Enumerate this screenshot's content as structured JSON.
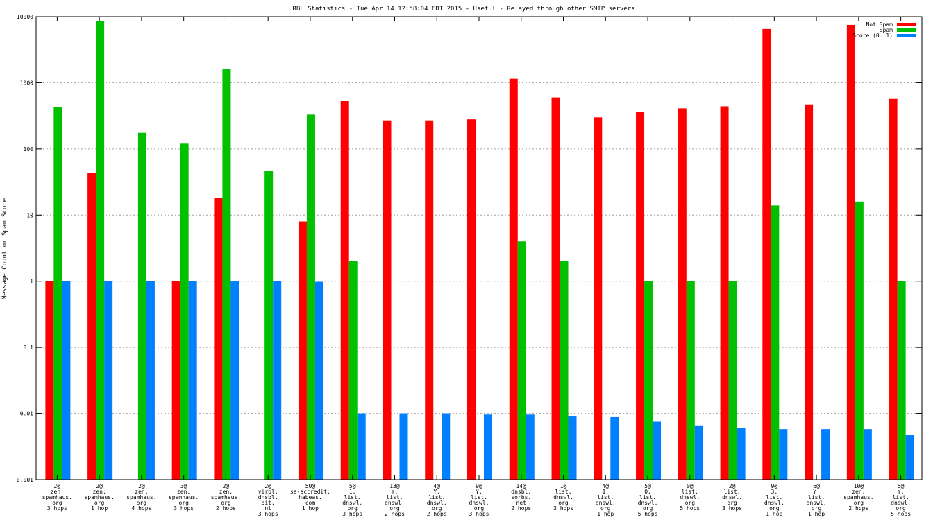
{
  "chart_data": {
    "type": "bar",
    "title": "RBL Statistics - Tue Apr 14 12:58:04 EDT 2015 - Useful - Relayed through other SMTP servers",
    "xlabel": "",
    "ylabel": "Message Count or Spam Score",
    "yscale": "log",
    "ylim": [
      0.001,
      10000
    ],
    "yticks": [
      "0.001",
      "0.01",
      "0.1",
      "1",
      "10",
      "100",
      "1000",
      "10000"
    ],
    "grid": true,
    "legend_position": "top-right",
    "categories": [
      [
        "2@",
        "zen.",
        "spamhaus.",
        "org",
        "3 hops"
      ],
      [
        "2@",
        "zen.",
        "spamhaus.",
        "org",
        "1 hop"
      ],
      [
        "2@",
        "zen.",
        "spamhaus.",
        "org",
        "4 hops"
      ],
      [
        "3@",
        "zen.",
        "spamhaus.",
        "org",
        "3 hops"
      ],
      [
        "2@",
        "zen.",
        "spamhaus.",
        "org",
        "2 hops"
      ],
      [
        "2@",
        "virbl.",
        "dnsbl.",
        "bit.",
        "nl",
        "3 hops"
      ],
      [
        "50@",
        "sa-accredit.",
        "habeas.",
        "com",
        "1 hop"
      ],
      [
        "5@",
        "1.",
        "list.",
        "dnswl.",
        "org",
        "3 hops"
      ],
      [
        "13@",
        "Y.",
        "list.",
        "dnswl.",
        "org",
        "2 hops"
      ],
      [
        "4@",
        "Y.",
        "list.",
        "dnswl.",
        "org",
        "2 hops"
      ],
      [
        "9@",
        "Y.",
        "list.",
        "dnswl.",
        "org",
        "3 hops"
      ],
      [
        "14@",
        "dnsbl.",
        "sorbs.",
        "net",
        "2 hops"
      ],
      [
        "1@",
        "list.",
        "dnswl.",
        "org",
        "3 hops"
      ],
      [
        "4@",
        "1.",
        "list.",
        "dnswl.",
        "org",
        "1 hop"
      ],
      [
        "5@",
        "0.",
        "list.",
        "dnswl.",
        "org",
        "5 hops"
      ],
      [
        "0@",
        "list.",
        "dnswl.",
        "org",
        "5 hops"
      ],
      [
        "2@",
        "list.",
        "dnswl.",
        "org",
        "3 hops"
      ],
      [
        "9@",
        "3.",
        "list.",
        "dnswl.",
        "org",
        "1 hop"
      ],
      [
        "6@",
        "Y.",
        "list.",
        "dnswl.",
        "org",
        "1 hop"
      ],
      [
        "10@",
        "zen.",
        "spamhaus.",
        "org",
        "2 hops"
      ],
      [
        "5@",
        "Y.",
        "list.",
        "dnswl.",
        "org",
        "5 hops"
      ]
    ],
    "series": [
      {
        "name": "Not Spam",
        "color": "#ff0000",
        "values": [
          1,
          43,
          null,
          1,
          18,
          null,
          8,
          530,
          270,
          270,
          280,
          1150,
          600,
          300,
          360,
          410,
          440,
          6500,
          470,
          7500,
          570
        ]
      },
      {
        "name": "Spam",
        "color": "#00c000",
        "values": [
          430,
          8500,
          175,
          120,
          1600,
          46,
          330,
          2,
          null,
          null,
          null,
          4,
          2,
          null,
          1,
          1,
          1,
          14,
          null,
          16,
          1
        ]
      },
      {
        "name": "Score (0..1)",
        "color": "#0080ff",
        "values": [
          1,
          1,
          1,
          1,
          1,
          1,
          0.98,
          0.01,
          0.01,
          0.01,
          0.0096,
          0.0096,
          0.0092,
          0.009,
          0.0075,
          0.0066,
          0.0061,
          0.0058,
          0.0058,
          0.0058,
          0.0048
        ]
      }
    ]
  }
}
